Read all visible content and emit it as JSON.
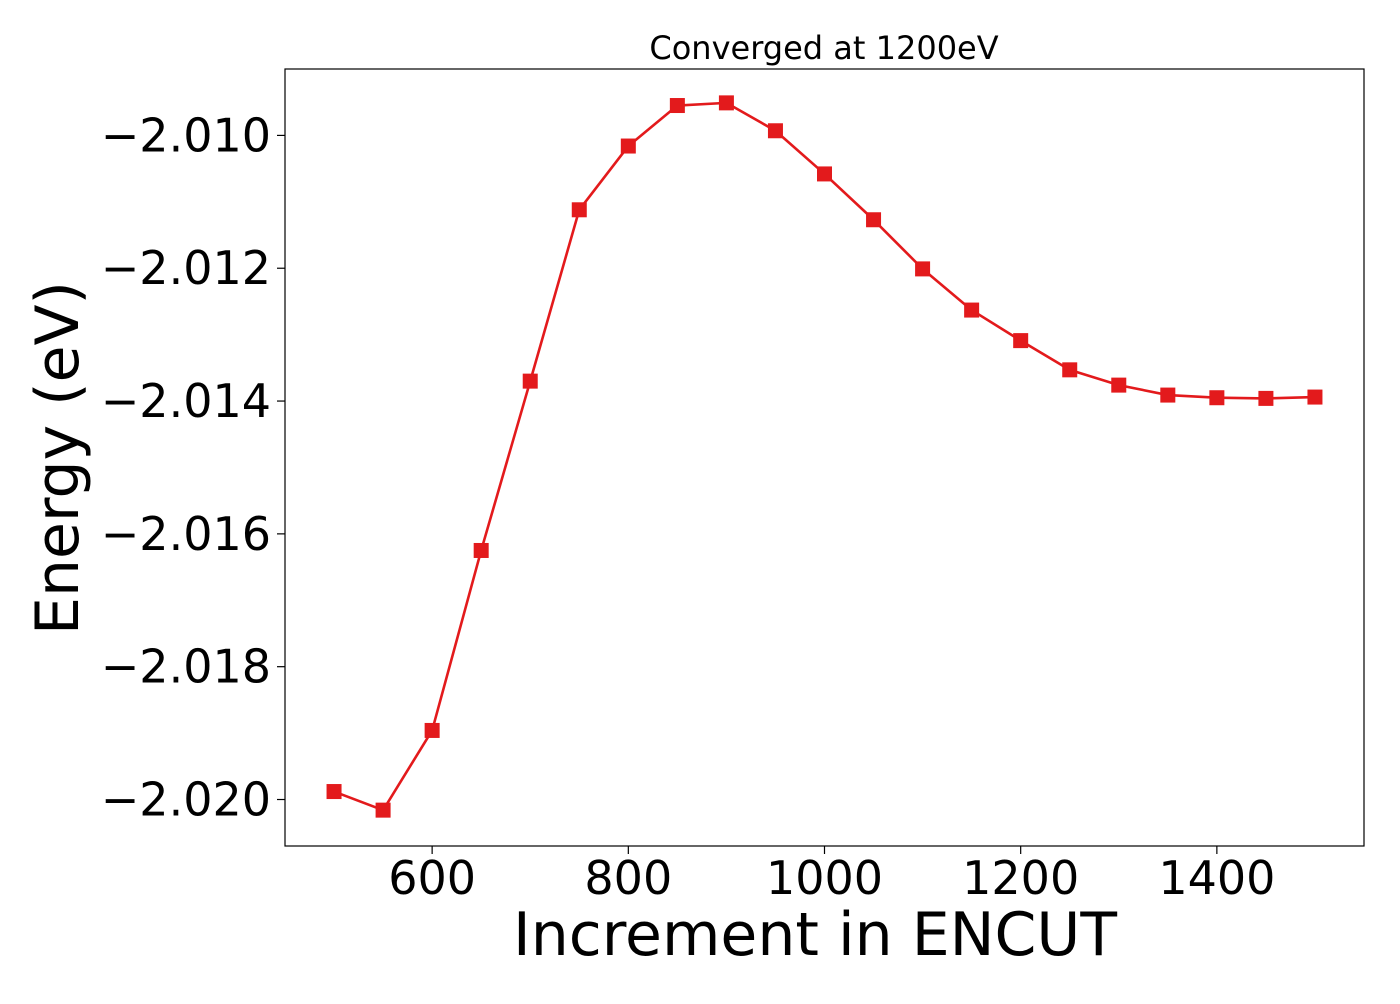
{
  "chart_data": {
    "type": "line",
    "title": "Converged at 1200eV",
    "xlabel": "Increment in ENCUT",
    "ylabel": "Energy (eV)",
    "xlim": [
      450,
      1550
    ],
    "ylim": [
      -2.0207,
      -2.009
    ],
    "xticks": [
      600,
      800,
      1000,
      1200,
      1400
    ],
    "xtick_labels": [
      "600",
      "800",
      "1000",
      "1200",
      "1400"
    ],
    "yticks": [
      -2.01,
      -2.012,
      -2.014,
      -2.016,
      -2.018,
      -2.02
    ],
    "ytick_labels": [
      "−2.010",
      "−2.012",
      "−2.014",
      "−2.016",
      "−2.018",
      "−2.020"
    ],
    "grid": false,
    "legend": "none",
    "series": [
      {
        "color": "#e31a1c",
        "marker": "square",
        "x": [
          500,
          550,
          600,
          650,
          700,
          750,
          800,
          850,
          900,
          950,
          1000,
          1050,
          1100,
          1150,
          1200,
          1250,
          1300,
          1350,
          1400,
          1450,
          1500
        ],
        "y": [
          -2.01988,
          -2.02016,
          -2.01896,
          -2.01625,
          -2.0137,
          -2.01112,
          -2.01016,
          -2.00955,
          -2.00951,
          -2.00993,
          -2.01058,
          -2.01127,
          -2.01201,
          -2.01263,
          -2.01309,
          -2.01353,
          -2.01376,
          -2.01391,
          -2.01395,
          -2.01396,
          -2.01394
        ]
      }
    ]
  }
}
